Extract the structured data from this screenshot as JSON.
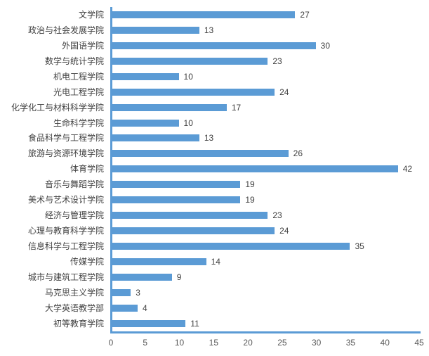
{
  "chart_data": {
    "type": "bar",
    "orientation": "horizontal",
    "title": "",
    "xlabel": "",
    "ylabel": "",
    "categories": [
      "文学院",
      "政治与社会发展学院",
      "外国语学院",
      "数学与统计学院",
      "机电工程学院",
      "光电工程学院",
      "化学化工与材料科学学院",
      "生命科学学院",
      "食品科学与工程学院",
      "旅游与资源环境学院",
      "体育学院",
      "音乐与舞蹈学院",
      "美术与艺术设计学院",
      "经济与管理学院",
      "心理与教育科学学院",
      "信息科学与工程学院",
      "传媒学院",
      "城市与建筑工程学院",
      "马克思主义学院",
      "大学英语教学部",
      "初等教育学院"
    ],
    "values": [
      27,
      13,
      30,
      23,
      10,
      24,
      17,
      10,
      13,
      26,
      42,
      19,
      19,
      23,
      24,
      35,
      14,
      9,
      3,
      4,
      11
    ],
    "data_labels": true,
    "xlim": [
      0,
      45
    ],
    "xticks": [
      0,
      5,
      10,
      15,
      20,
      25,
      30,
      35,
      40,
      45
    ],
    "grid": false,
    "legend": "none",
    "bar_color": "#5B9BD5",
    "axis_line_color": "#5B9BD5",
    "category_label_color": "#3F3F3F",
    "data_label_color": "#404040",
    "tick_label_color": "#595959"
  }
}
